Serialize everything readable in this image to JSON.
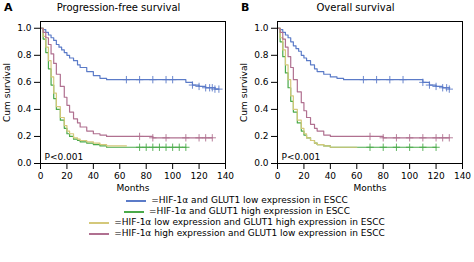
{
  "chart_data": [
    {
      "type": "step",
      "panel_label": "A",
      "title": "Progression-free survival",
      "xlabel": "Months",
      "ylabel": "Cum survival",
      "annotation": "P<0.001",
      "xlim": [
        0,
        140
      ],
      "ylim": [
        0.0,
        1.05
      ],
      "xticks": [
        0,
        20,
        40,
        60,
        80,
        100,
        120,
        140
      ],
      "yticks": [
        {
          "value": 0.0,
          "label": "0.0"
        },
        {
          "value": 0.2,
          "label": "0.2"
        },
        {
          "value": 0.4,
          "label": "0.4"
        },
        {
          "value": 0.6,
          "label": "0.6"
        },
        {
          "value": 0.8,
          "label": "0.8"
        },
        {
          "value": 1.0,
          "label": "1.0"
        }
      ],
      "series": [
        {
          "name": "=HIF-1α and GLUT1 low expression in ESCC",
          "color": "#5b7bc8",
          "x": [
            0,
            2,
            4,
            6,
            8,
            10,
            12,
            14,
            16,
            18,
            20,
            22,
            25,
            28,
            30,
            35,
            40,
            45,
            50,
            55,
            60,
            65,
            70,
            75,
            80,
            85,
            90,
            95,
            100,
            110,
            115,
            120,
            125,
            128,
            130,
            132,
            135
          ],
          "values": [
            1.0,
            0.99,
            0.97,
            0.95,
            0.93,
            0.91,
            0.88,
            0.86,
            0.84,
            0.82,
            0.8,
            0.78,
            0.76,
            0.73,
            0.71,
            0.68,
            0.65,
            0.63,
            0.62,
            0.62,
            0.62,
            0.62,
            0.62,
            0.62,
            0.62,
            0.62,
            0.62,
            0.62,
            0.62,
            0.6,
            0.58,
            0.57,
            0.56,
            0.56,
            0.56,
            0.55,
            0.55
          ],
          "censor_x": [
            65,
            75,
            85,
            95,
            100,
            115,
            120,
            125,
            128,
            130,
            132,
            135
          ],
          "censor_y": [
            0.62,
            0.62,
            0.62,
            0.62,
            0.62,
            0.58,
            0.57,
            0.56,
            0.56,
            0.56,
            0.55,
            0.55
          ]
        },
        {
          "name": "=HIF-1α and GLUT1 high expression in ESCC",
          "color": "#4aaa4a",
          "x": [
            0,
            2,
            4,
            6,
            8,
            10,
            12,
            15,
            18,
            20,
            22,
            25,
            28,
            30,
            35,
            40,
            45,
            50,
            55,
            60,
            65,
            70,
            75,
            80,
            85,
            90,
            95,
            100,
            105,
            110
          ],
          "values": [
            1.0,
            0.92,
            0.82,
            0.7,
            0.58,
            0.48,
            0.4,
            0.32,
            0.26,
            0.22,
            0.2,
            0.18,
            0.17,
            0.16,
            0.15,
            0.14,
            0.13,
            0.12,
            0.12,
            0.12,
            0.12,
            0.12,
            0.12,
            0.12,
            0.12,
            0.12,
            0.12,
            0.12,
            0.12,
            0.12
          ],
          "censor_x": [
            75,
            80,
            85,
            90,
            95,
            100,
            105,
            110
          ],
          "censor_y": [
            0.12,
            0.12,
            0.12,
            0.12,
            0.12,
            0.12,
            0.12,
            0.12
          ]
        },
        {
          "name": "=HIF-1α low expression and GLUT1 high expression in ESCC",
          "color": "#d4c87a",
          "x": [
            0,
            2,
            4,
            6,
            8,
            10,
            12,
            15,
            18,
            20,
            22,
            25,
            28,
            30,
            35,
            40,
            45,
            50,
            55,
            60,
            65
          ],
          "values": [
            1.0,
            0.94,
            0.86,
            0.76,
            0.64,
            0.52,
            0.42,
            0.34,
            0.28,
            0.24,
            0.22,
            0.19,
            0.18,
            0.17,
            0.16,
            0.15,
            0.14,
            0.13,
            0.13,
            0.13,
            0.13
          ],
          "censor_x": [],
          "censor_y": []
        },
        {
          "name": "=HIF-1α high expression and GLUT1 low expression in ESCC",
          "color": "#b07090",
          "x": [
            0,
            2,
            4,
            6,
            8,
            10,
            12,
            15,
            18,
            20,
            22,
            25,
            28,
            30,
            35,
            40,
            45,
            50,
            55,
            60,
            65,
            70,
            75,
            80,
            85,
            90,
            95,
            100,
            110,
            120,
            125,
            130
          ],
          "values": [
            1.0,
            0.97,
            0.93,
            0.88,
            0.81,
            0.74,
            0.66,
            0.57,
            0.49,
            0.43,
            0.38,
            0.33,
            0.3,
            0.27,
            0.24,
            0.22,
            0.21,
            0.2,
            0.2,
            0.2,
            0.2,
            0.2,
            0.2,
            0.2,
            0.19,
            0.19,
            0.19,
            0.19,
            0.19,
            0.19,
            0.19,
            0.19
          ],
          "censor_x": [
            75,
            85,
            95,
            110,
            120,
            125,
            130
          ],
          "censor_y": [
            0.2,
            0.19,
            0.19,
            0.19,
            0.19,
            0.19,
            0.19
          ]
        }
      ]
    },
    {
      "type": "step",
      "panel_label": "B",
      "title": "Overall survival",
      "xlabel": "Months",
      "ylabel": "Cum survival",
      "annotation": "P<0.001",
      "xlim": [
        0,
        140
      ],
      "ylim": [
        0.0,
        1.05
      ],
      "xticks": [
        0,
        20,
        40,
        60,
        80,
        100,
        120,
        140
      ],
      "yticks": [
        {
          "value": 0.0,
          "label": "0.0"
        },
        {
          "value": 0.2,
          "label": "0.2"
        },
        {
          "value": 0.4,
          "label": "0.4"
        },
        {
          "value": 0.6,
          "label": "0.6"
        },
        {
          "value": 0.8,
          "label": "0.8"
        },
        {
          "value": 1.0,
          "label": "1.0"
        }
      ],
      "series": [
        {
          "name": "=HIF-1α and GLUT1 low expression in ESCC",
          "color": "#5b7bc8",
          "x": [
            0,
            2,
            4,
            6,
            8,
            10,
            12,
            14,
            16,
            18,
            20,
            22,
            25,
            28,
            30,
            35,
            40,
            45,
            50,
            55,
            60,
            65,
            70,
            75,
            80,
            85,
            90,
            95,
            100,
            110,
            115,
            120,
            125,
            128,
            130
          ],
          "values": [
            1.0,
            0.99,
            0.97,
            0.95,
            0.93,
            0.9,
            0.87,
            0.85,
            0.83,
            0.8,
            0.78,
            0.76,
            0.73,
            0.7,
            0.68,
            0.66,
            0.64,
            0.63,
            0.62,
            0.62,
            0.62,
            0.62,
            0.62,
            0.62,
            0.62,
            0.62,
            0.62,
            0.62,
            0.62,
            0.6,
            0.58,
            0.57,
            0.56,
            0.56,
            0.55
          ],
          "censor_x": [
            65,
            75,
            85,
            95,
            110,
            115,
            120,
            125,
            128,
            130
          ],
          "censor_y": [
            0.62,
            0.62,
            0.62,
            0.62,
            0.6,
            0.58,
            0.57,
            0.56,
            0.56,
            0.55
          ]
        },
        {
          "name": "=HIF-1α and GLUT1 high expression in ESCC",
          "color": "#4aaa4a",
          "x": [
            0,
            2,
            4,
            6,
            8,
            10,
            12,
            15,
            18,
            20,
            22,
            25,
            28,
            30,
            35,
            40,
            45,
            50,
            55,
            60,
            65,
            70,
            75,
            80,
            90,
            100,
            110,
            120
          ],
          "values": [
            1.0,
            0.9,
            0.79,
            0.67,
            0.56,
            0.46,
            0.38,
            0.3,
            0.24,
            0.21,
            0.19,
            0.17,
            0.15,
            0.14,
            0.13,
            0.12,
            0.12,
            0.12,
            0.12,
            0.12,
            0.12,
            0.12,
            0.12,
            0.12,
            0.12,
            0.12,
            0.12,
            0.12
          ],
          "censor_x": [
            70,
            80,
            90,
            100,
            110,
            120
          ],
          "censor_y": [
            0.12,
            0.12,
            0.12,
            0.12,
            0.12,
            0.12
          ]
        },
        {
          "name": "=HIF-1α low expression and GLUT1 high expression in ESCC",
          "color": "#d4c87a",
          "x": [
            0,
            2,
            4,
            6,
            8,
            10,
            12,
            15,
            18,
            20,
            22,
            25,
            28,
            30,
            35,
            40,
            45,
            50,
            55,
            60
          ],
          "values": [
            1.0,
            0.93,
            0.84,
            0.73,
            0.62,
            0.5,
            0.4,
            0.32,
            0.26,
            0.22,
            0.19,
            0.17,
            0.15,
            0.14,
            0.13,
            0.12,
            0.12,
            0.12,
            0.12,
            0.12
          ],
          "censor_x": [],
          "censor_y": []
        },
        {
          "name": "=HIF-1α high expression and GLUT1 low expression in ESCC",
          "color": "#b07090",
          "x": [
            0,
            2,
            4,
            6,
            8,
            10,
            12,
            15,
            18,
            20,
            22,
            25,
            28,
            30,
            35,
            40,
            45,
            50,
            55,
            60,
            65,
            70,
            75,
            80,
            85,
            90,
            95,
            100,
            110,
            120,
            125,
            130
          ],
          "values": [
            1.0,
            0.97,
            0.92,
            0.86,
            0.79,
            0.71,
            0.62,
            0.53,
            0.45,
            0.39,
            0.34,
            0.29,
            0.26,
            0.24,
            0.21,
            0.2,
            0.2,
            0.2,
            0.2,
            0.2,
            0.2,
            0.2,
            0.2,
            0.19,
            0.19,
            0.19,
            0.19,
            0.19,
            0.19,
            0.19,
            0.19,
            0.19
          ],
          "censor_x": [
            70,
            80,
            90,
            100,
            110,
            120,
            125,
            130
          ],
          "censor_y": [
            0.2,
            0.19,
            0.19,
            0.19,
            0.19,
            0.19,
            0.19,
            0.19
          ]
        }
      ]
    }
  ]
}
